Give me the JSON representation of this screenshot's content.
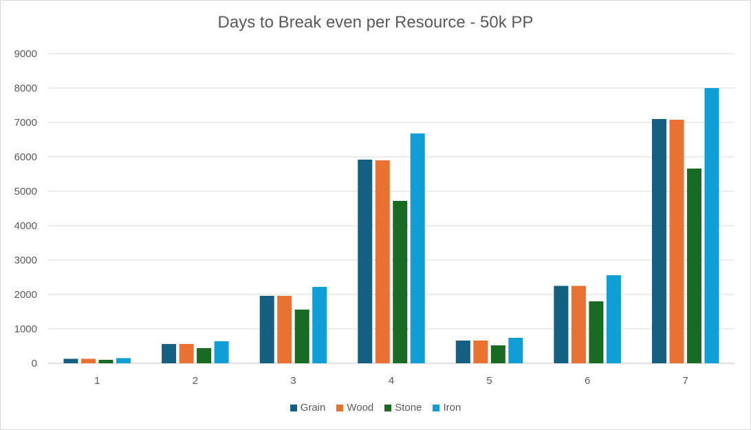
{
  "chart_data": {
    "type": "bar",
    "title": "Days to Break even per Resource - 50k PP",
    "categories": [
      "1",
      "2",
      "3",
      "4",
      "5",
      "6",
      "7"
    ],
    "series": [
      {
        "name": "Grain",
        "color": "#156082",
        "values": [
          130,
          560,
          1960,
          5920,
          660,
          2250,
          7100
        ]
      },
      {
        "name": "Wood",
        "color": "#E97132",
        "values": [
          130,
          560,
          1960,
          5900,
          660,
          2250,
          7080
        ]
      },
      {
        "name": "Stone",
        "color": "#196B24",
        "values": [
          100,
          440,
          1560,
          4720,
          520,
          1800,
          5660
        ]
      },
      {
        "name": "Iron",
        "color": "#0F9ED5",
        "values": [
          150,
          640,
          2220,
          6680,
          740,
          2560,
          8000
        ]
      }
    ],
    "yticks": [
      "0",
      "1000",
      "2000",
      "3000",
      "4000",
      "5000",
      "6000",
      "7000",
      "8000",
      "9000"
    ],
    "ylim": [
      0,
      9000
    ],
    "grid": true,
    "legend_position": "bottom"
  }
}
